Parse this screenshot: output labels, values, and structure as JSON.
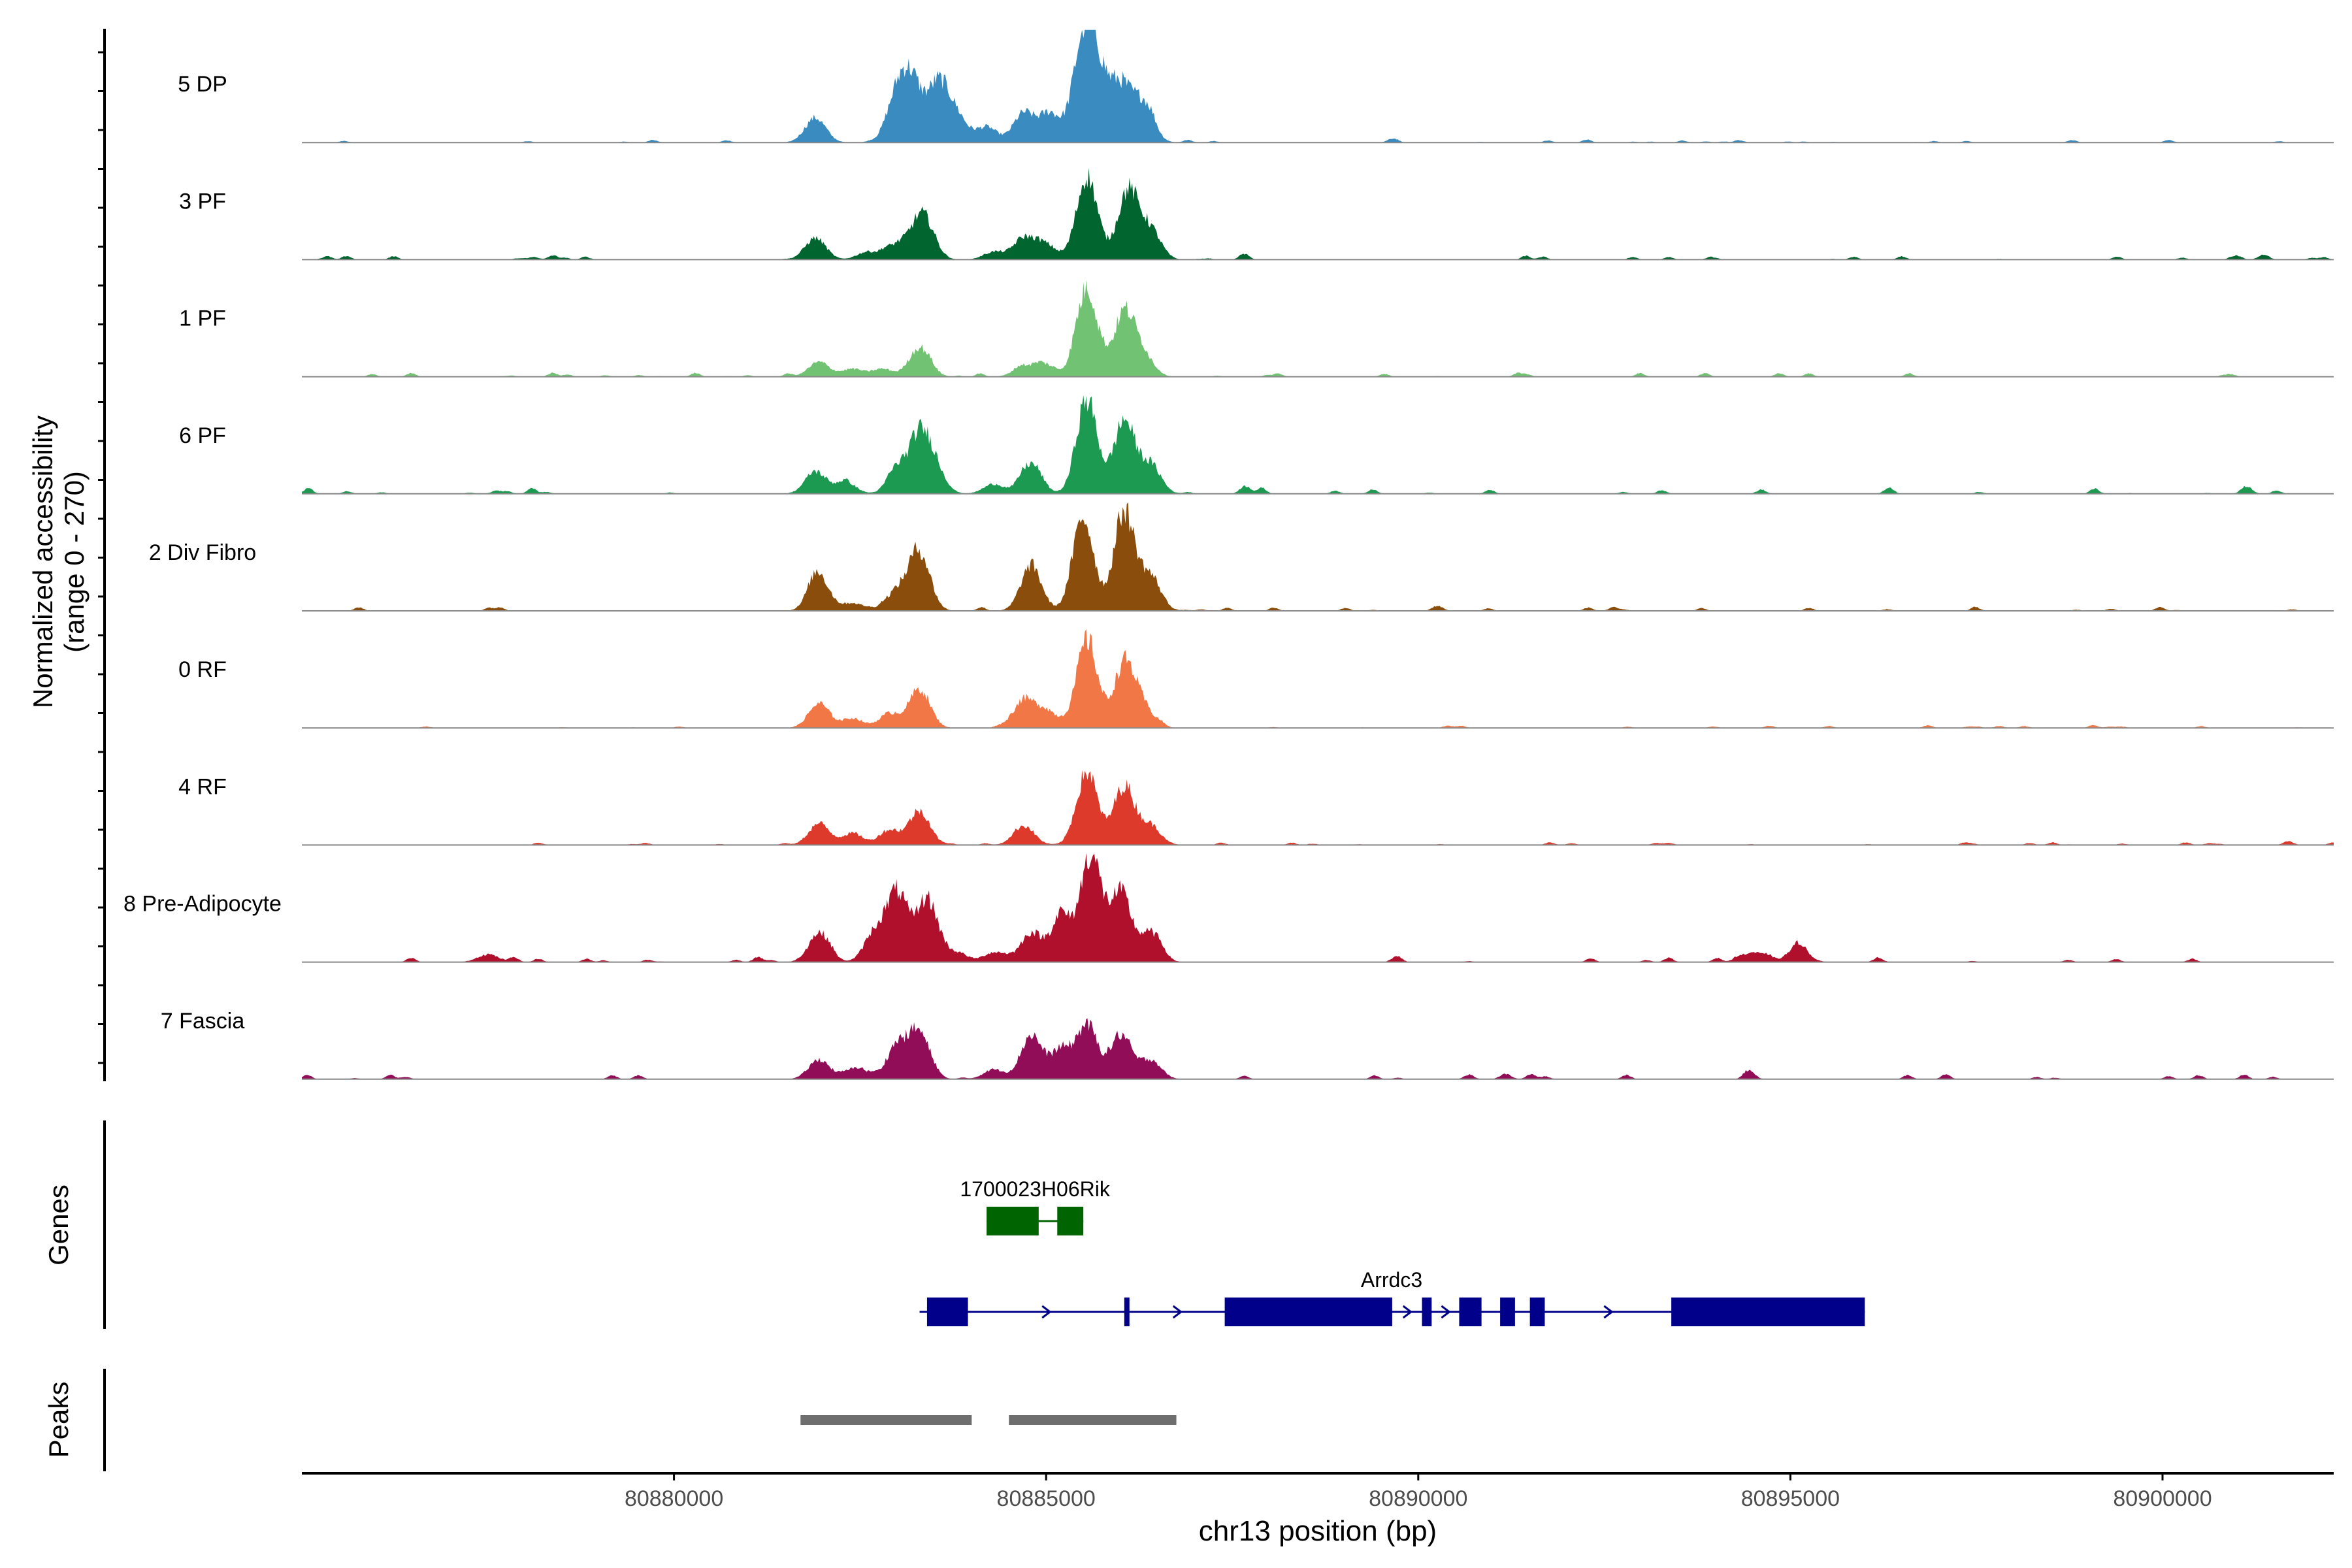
{
  "chart_data": {
    "type": "area",
    "chrom": "chr13",
    "xlabel": "chr13 position (bp)",
    "ylabel": "Normalized accessibility",
    "ylabel_range": "(range 0 - 270)",
    "ylim": [
      0,
      270
    ],
    "xlim": [
      80875000,
      80902300
    ],
    "x_ticks": [
      80880000,
      80885000,
      80890000,
      80895000,
      80900000
    ],
    "x_tick_labels": [
      "80880000",
      "80885000",
      "80890000",
      "80895000",
      "80900000"
    ],
    "genes_label": "Genes",
    "peaks_label": "Peaks",
    "tracks": [
      {
        "name": "5 DP",
        "color": "#3a8cc0",
        "peaks": [
          [
            80881900,
            0.25
          ],
          [
            80883000,
            0.45
          ],
          [
            80883200,
            0.55
          ],
          [
            80883550,
            0.58
          ],
          [
            80883800,
            0.25
          ],
          [
            80884200,
            0.16
          ],
          [
            80884700,
            0.3
          ],
          [
            80885050,
            0.3
          ],
          [
            80885500,
            0.98
          ],
          [
            80885700,
            0.6
          ],
          [
            80886000,
            0.55
          ],
          [
            80886300,
            0.4
          ]
        ],
        "noise": 0.03
      },
      {
        "name": "3 PF",
        "color": "#00652f",
        "peaks": [
          [
            80881900,
            0.22
          ],
          [
            80882600,
            0.08
          ],
          [
            80883000,
            0.15
          ],
          [
            80883300,
            0.3
          ],
          [
            80883400,
            0.2
          ],
          [
            80884300,
            0.08
          ],
          [
            80884700,
            0.22
          ],
          [
            80885000,
            0.15
          ],
          [
            80885550,
            0.85
          ],
          [
            80886100,
            0.7
          ],
          [
            80886400,
            0.3
          ]
        ],
        "noise": 0.04
      },
      {
        "name": "1 PF",
        "color": "#72c274",
        "peaks": [
          [
            80881950,
            0.15
          ],
          [
            80882400,
            0.08
          ],
          [
            80882800,
            0.08
          ],
          [
            80883300,
            0.3
          ],
          [
            80884700,
            0.1
          ],
          [
            80885000,
            0.12
          ],
          [
            80885550,
            0.9
          ],
          [
            80886050,
            0.65
          ],
          [
            80886300,
            0.2
          ]
        ],
        "noise": 0.04
      },
      {
        "name": "6 PF",
        "color": "#1d9a52",
        "peaks": [
          [
            80881900,
            0.22
          ],
          [
            80882300,
            0.12
          ],
          [
            80883000,
            0.2
          ],
          [
            80883300,
            0.55
          ],
          [
            80883500,
            0.25
          ],
          [
            80884300,
            0.1
          ],
          [
            80884800,
            0.3
          ],
          [
            80885550,
            0.95
          ],
          [
            80886050,
            0.75
          ],
          [
            80886400,
            0.3
          ]
        ],
        "noise": 0.06
      },
      {
        "name": "2 Div Fibro",
        "color": "#8b4d0b",
        "peaks": [
          [
            80881950,
            0.35
          ],
          [
            80882400,
            0.08
          ],
          [
            80883000,
            0.2
          ],
          [
            80883300,
            0.6
          ],
          [
            80884800,
            0.45
          ],
          [
            80885500,
            0.95
          ],
          [
            80886050,
            1.0
          ],
          [
            80886400,
            0.35
          ]
        ],
        "noise": 0.04
      },
      {
        "name": "0 RF",
        "color": "#f27746",
        "peaks": [
          [
            80881950,
            0.25
          ],
          [
            80882400,
            0.1
          ],
          [
            80882900,
            0.15
          ],
          [
            80883300,
            0.4
          ],
          [
            80884700,
            0.28
          ],
          [
            80885000,
            0.18
          ],
          [
            80885550,
            0.9
          ],
          [
            80886050,
            0.65
          ],
          [
            80886300,
            0.2
          ]
        ],
        "noise": 0.03
      },
      {
        "name": "4 RF",
        "color": "#dd3a2c",
        "peaks": [
          [
            80881950,
            0.22
          ],
          [
            80882400,
            0.12
          ],
          [
            80882900,
            0.15
          ],
          [
            80883300,
            0.35
          ],
          [
            80884700,
            0.2
          ],
          [
            80885550,
            0.75
          ],
          [
            80886050,
            0.6
          ],
          [
            80886400,
            0.2
          ]
        ],
        "noise": 0.03
      },
      {
        "name": "8 Pre-Adipocyte",
        "color": "#b0102c",
        "peaks": [
          [
            80881950,
            0.3
          ],
          [
            80882700,
            0.3
          ],
          [
            80883000,
            0.7
          ],
          [
            80883400,
            0.65
          ],
          [
            80883800,
            0.1
          ],
          [
            80884300,
            0.1
          ],
          [
            80884800,
            0.3
          ],
          [
            80885200,
            0.45
          ],
          [
            80885600,
            1.1
          ],
          [
            80886000,
            0.7
          ],
          [
            80886400,
            0.3
          ],
          [
            80877500,
            0.08
          ],
          [
            80895100,
            0.15
          ],
          [
            80894500,
            0.1
          ]
        ],
        "noise": 0.05
      },
      {
        "name": "7 Fascia",
        "color": "#920d57",
        "peaks": [
          [
            80881950,
            0.2
          ],
          [
            80882400,
            0.1
          ],
          [
            80883000,
            0.35
          ],
          [
            80883300,
            0.45
          ],
          [
            80884300,
            0.1
          ],
          [
            80884800,
            0.45
          ],
          [
            80885200,
            0.3
          ],
          [
            80885550,
            0.55
          ],
          [
            80886000,
            0.45
          ],
          [
            80886400,
            0.2
          ]
        ],
        "noise": 0.05
      }
    ],
    "genes": [
      {
        "name": "1700023H06Rik",
        "color": "#006400",
        "start": 80884200,
        "end": 80885500,
        "exons": [
          [
            80884200,
            80884900
          ],
          [
            80885150,
            80885500
          ]
        ],
        "strand": "none"
      },
      {
        "name": "Arrdc3",
        "color": "#00008b",
        "start": 80883300,
        "end": 80896000,
        "exons": [
          [
            80883400,
            80883950
          ],
          [
            80886050,
            80886120
          ],
          [
            80887400,
            80889650
          ],
          [
            80890050,
            80890180
          ],
          [
            80890550,
            80890850
          ],
          [
            80891100,
            80891300
          ],
          [
            80891500,
            80891700
          ],
          [
            80893400,
            80896000
          ]
        ],
        "strand": "+"
      }
    ],
    "peak_regions": [
      [
        80881700,
        80884000
      ],
      [
        80884500,
        80886750
      ]
    ]
  }
}
